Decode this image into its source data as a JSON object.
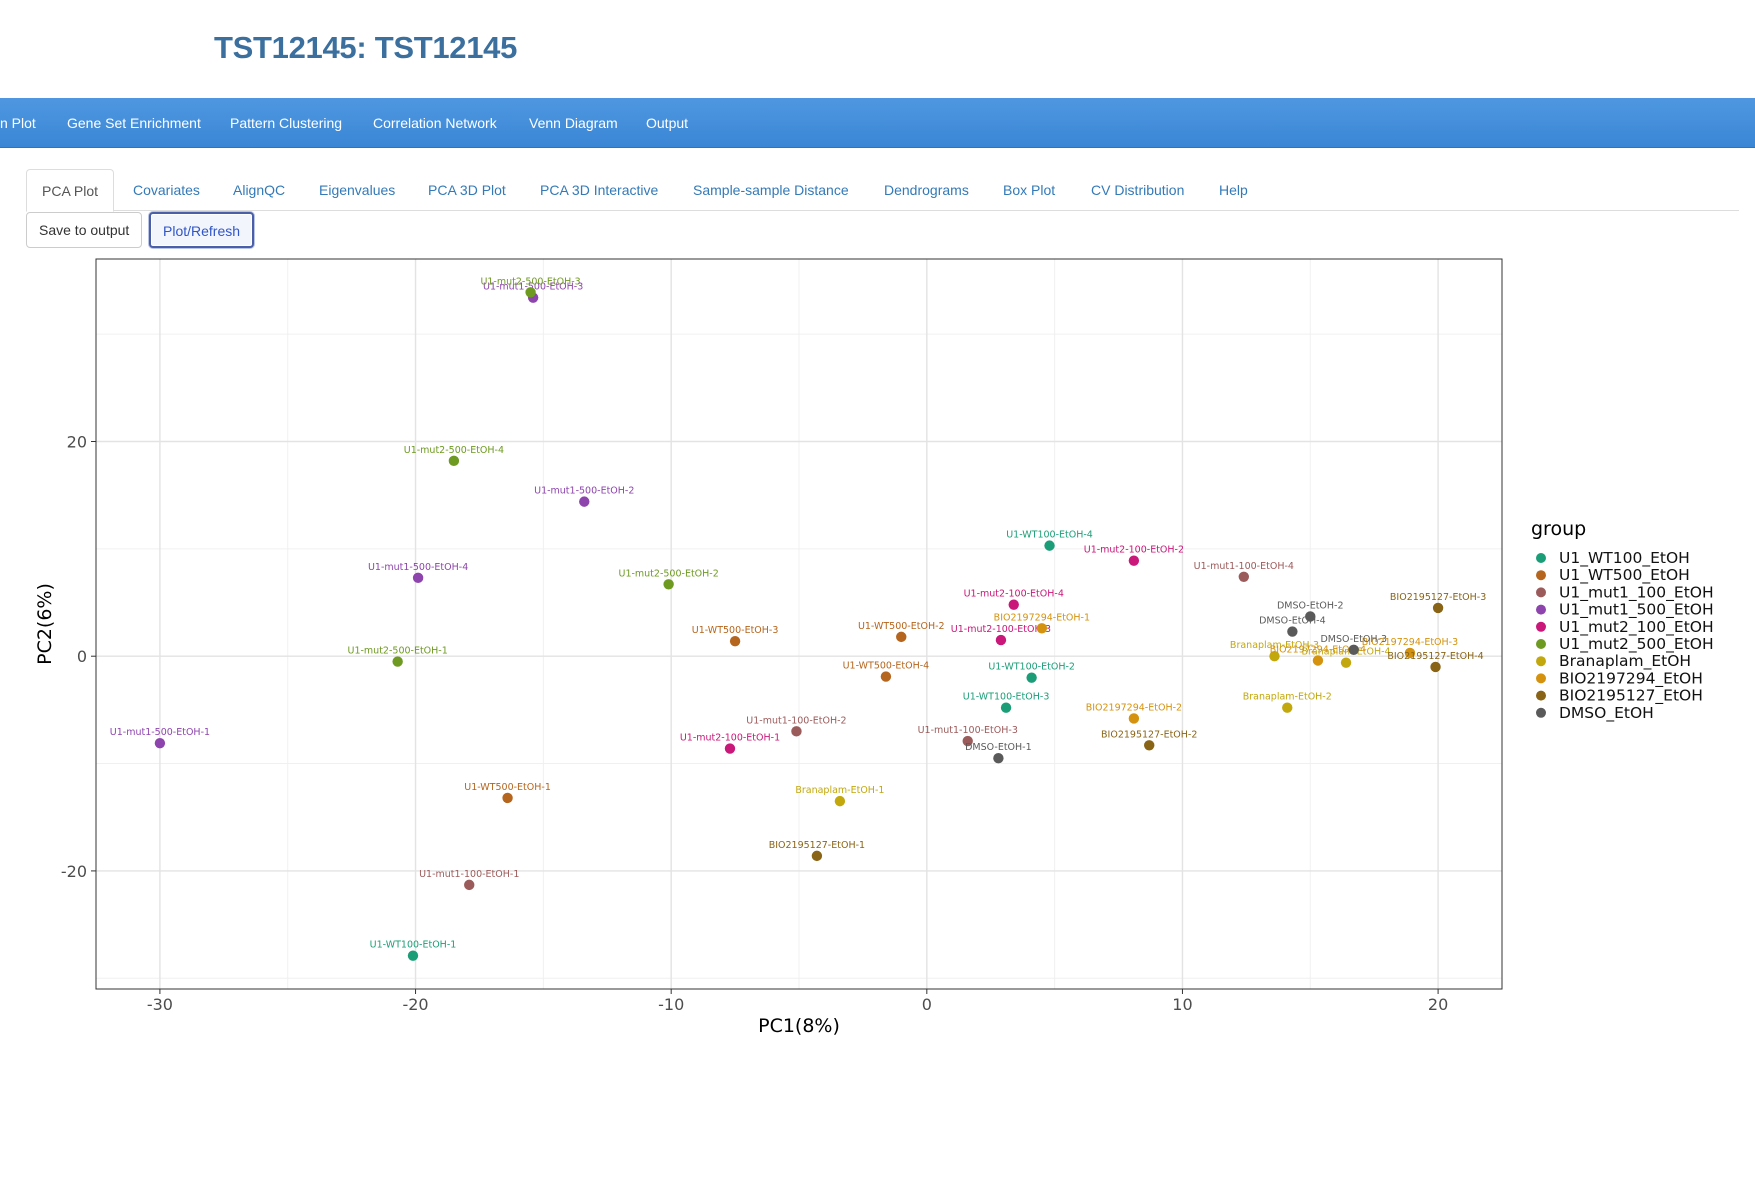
{
  "app": {
    "title": "TST12145: TST12145"
  },
  "navbar": {
    "items": [
      {
        "label": "n Plot"
      },
      {
        "label": "Gene Set Enrichment"
      },
      {
        "label": "Pattern Clustering"
      },
      {
        "label": "Correlation Network"
      },
      {
        "label": "Venn Diagram"
      },
      {
        "label": "Output"
      }
    ]
  },
  "tabs": [
    {
      "label": "PCA Plot",
      "active": true
    },
    {
      "label": "Covariates"
    },
    {
      "label": "AlignQC"
    },
    {
      "label": "Eigenvalues"
    },
    {
      "label": "PCA 3D Plot"
    },
    {
      "label": "PCA 3D Interactive"
    },
    {
      "label": "Sample-sample Distance"
    },
    {
      "label": "Dendrograms"
    },
    {
      "label": "Box Plot"
    },
    {
      "label": "CV Distribution"
    },
    {
      "label": "Help"
    }
  ],
  "buttons": {
    "save_label": "Save to output",
    "plot_label": "Plot/Refresh"
  },
  "chart_data": {
    "type": "scatter",
    "xlabel": "PC1(8%)",
    "ylabel": "PC2(6%)",
    "xlim": [
      -32.5,
      22.5
    ],
    "ylim": [
      -31,
      37
    ],
    "x_ticks": [
      -30,
      -20,
      -10,
      0,
      10,
      20
    ],
    "y_ticks": [
      -20,
      0,
      20
    ],
    "grid": true,
    "legend": {
      "title": "group",
      "position": "right"
    },
    "series": [
      {
        "name": "U1_WT100_EtOH",
        "color": "#1b9e77",
        "points": [
          {
            "label": "U1-WT100-EtOH-4",
            "x": 4.8,
            "y": 10.3
          },
          {
            "label": "U1-WT100-EtOH-2",
            "x": 4.1,
            "y": -2.0
          },
          {
            "label": "U1-WT100-EtOH-3",
            "x": 3.1,
            "y": -4.8
          },
          {
            "label": "U1-WT100-EtOH-1",
            "x": -20.1,
            "y": -27.9
          }
        ]
      },
      {
        "name": "U1_WT500_EtOH",
        "color": "#b5651d",
        "points": [
          {
            "label": "U1-WT500-EtOH-3",
            "x": -7.5,
            "y": 1.4
          },
          {
            "label": "U1-WT500-EtOH-2",
            "x": -1.0,
            "y": 1.8
          },
          {
            "label": "U1-WT500-EtOH-4",
            "x": -1.6,
            "y": -1.9
          },
          {
            "label": "U1-WT500-EtOH-1",
            "x": -16.4,
            "y": -13.2
          }
        ]
      },
      {
        "name": "U1_mut1_100_EtOH",
        "color": "#9c5b5b",
        "points": [
          {
            "label": "U1-mut1-100-EtOH-4",
            "x": 12.4,
            "y": 7.4
          },
          {
            "label": "U1-mut1-100-EtOH-2",
            "x": -5.1,
            "y": -7.0
          },
          {
            "label": "U1-mut1-100-EtOH-3",
            "x": 1.6,
            "y": -7.9
          },
          {
            "label": "U1-mut1-100-EtOH-1",
            "x": -17.9,
            "y": -21.3
          }
        ]
      },
      {
        "name": "U1_mut1_500_EtOH",
        "color": "#8e44ad",
        "points": [
          {
            "label": "U1-mut1-500-EtOH-3",
            "x": -15.4,
            "y": 33.4
          },
          {
            "label": "U1-mut1-500-EtOH-2",
            "x": -13.4,
            "y": 14.4
          },
          {
            "label": "U1-mut1-500-EtOH-4",
            "x": -19.9,
            "y": 7.3
          },
          {
            "label": "U1-mut1-500-EtOH-1",
            "x": -30.0,
            "y": -8.1
          }
        ]
      },
      {
        "name": "U1_mut2_100_EtOH",
        "color": "#c9177a",
        "points": [
          {
            "label": "U1-mut2-100-EtOH-2",
            "x": 8.1,
            "y": 8.9
          },
          {
            "label": "U1-mut2-100-EtOH-4",
            "x": 3.4,
            "y": 4.8
          },
          {
            "label": "U1-mut2-100-EtOH-3",
            "x": 2.9,
            "y": 1.5
          },
          {
            "label": "U1-mut2-100-EtOH-1",
            "x": -7.7,
            "y": -8.6
          }
        ]
      },
      {
        "name": "U1_mut2_500_EtOH",
        "color": "#6e9a22",
        "points": [
          {
            "label": "U1-mut2-500-EtOH-3",
            "x": -15.5,
            "y": 33.9
          },
          {
            "label": "U1-mut2-500-EtOH-4",
            "x": -18.5,
            "y": 18.2
          },
          {
            "label": "U1-mut2-500-EtOH-2",
            "x": -10.1,
            "y": 6.7
          },
          {
            "label": "U1-mut2-500-EtOH-1",
            "x": -20.7,
            "y": -0.5
          }
        ]
      },
      {
        "name": "Branaplam_EtOH",
        "color": "#c2a80c",
        "points": [
          {
            "label": "Branaplam-EtOH-3",
            "x": 13.6,
            "y": 0.0
          },
          {
            "label": "Branaplam-EtOH-4",
            "x": 16.4,
            "y": -0.6
          },
          {
            "label": "Branaplam-EtOH-2",
            "x": 14.1,
            "y": -4.8
          },
          {
            "label": "Branaplam-EtOH-1",
            "x": -3.4,
            "y": -13.5
          }
        ]
      },
      {
        "name": "BIO2197294_EtOH",
        "color": "#d4920f",
        "points": [
          {
            "label": "BIO2197294-EtOH-1",
            "x": 4.5,
            "y": 2.6
          },
          {
            "label": "BIO2197294-EtOH-4",
            "x": 15.3,
            "y": -0.4
          },
          {
            "label": "BIO2197294-EtOH-3",
            "x": 18.9,
            "y": 0.3
          },
          {
            "label": "BIO2197294-EtOH-2",
            "x": 8.1,
            "y": -5.8
          }
        ]
      },
      {
        "name": "BIO2195127_EtOH",
        "color": "#8a6416",
        "points": [
          {
            "label": "BIO2195127-EtOH-3",
            "x": 20.0,
            "y": 4.5
          },
          {
            "label": "BIO2195127-EtOH-4",
            "x": 19.9,
            "y": -1.0
          },
          {
            "label": "BIO2195127-EtOH-2",
            "x": 8.7,
            "y": -8.3
          },
          {
            "label": "BIO2195127-EtOH-1",
            "x": -4.3,
            "y": -18.6
          }
        ]
      },
      {
        "name": "DMSO_EtOH",
        "color": "#5a5a5a",
        "points": [
          {
            "label": "DMSO-EtOH-2",
            "x": 15.0,
            "y": 3.7
          },
          {
            "label": "DMSO-EtOH-4",
            "x": 14.3,
            "y": 2.3
          },
          {
            "label": "DMSO-EtOH-3",
            "x": 16.7,
            "y": 0.6
          },
          {
            "label": "DMSO-EtOH-1",
            "x": 2.8,
            "y": -9.5
          }
        ]
      }
    ]
  }
}
